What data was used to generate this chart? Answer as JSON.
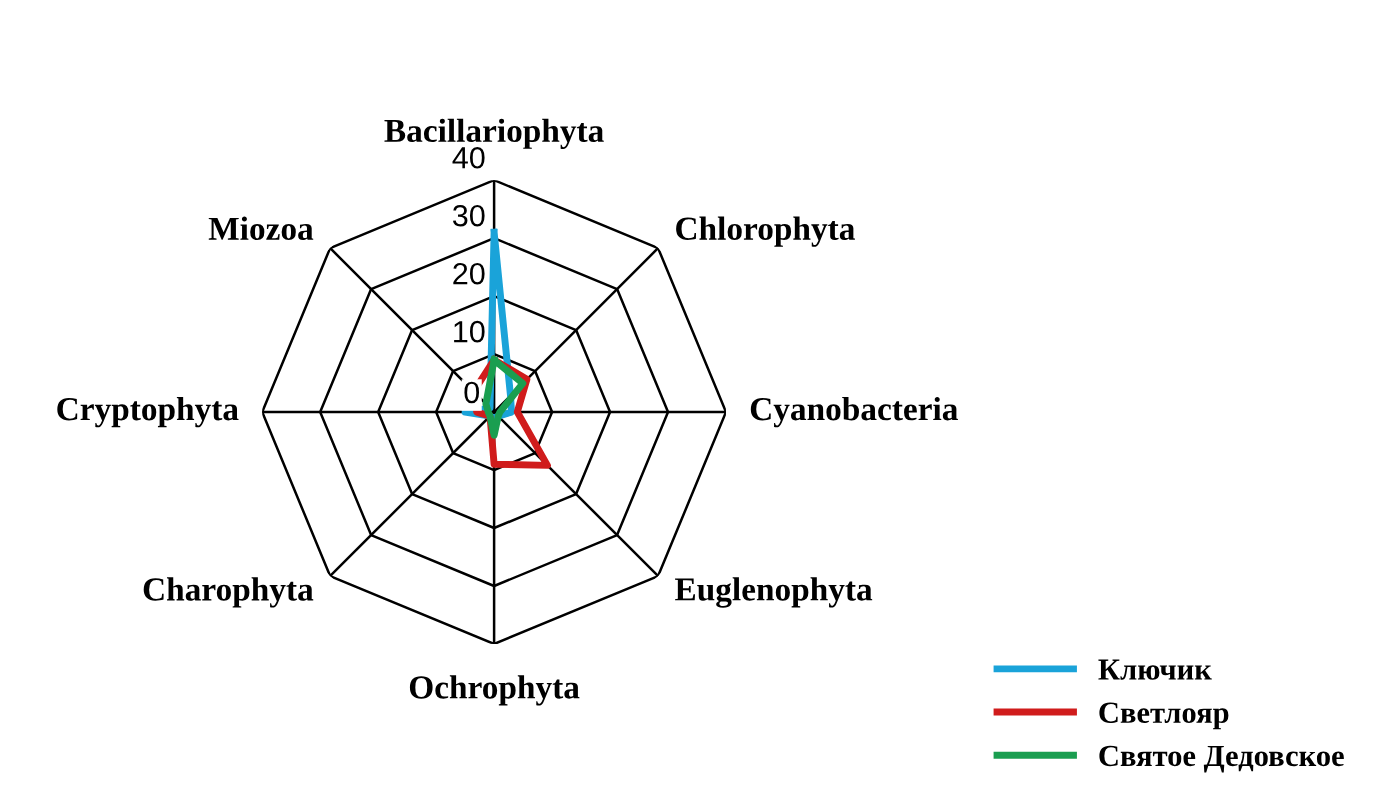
{
  "chart_data": {
    "type": "radar",
    "categories": [
      "Bacillariophyta",
      "Chlorophyta",
      "Cyanobacteria",
      "Euglenophyta",
      "Ochrophyta",
      "Charophyta",
      "Cryptophyta",
      "Miozoa"
    ],
    "series": [
      {
        "name": "Ключик",
        "color": "#1aa3d9",
        "values": [
          31,
          4,
          3,
          1,
          1,
          1,
          5,
          1
        ]
      },
      {
        "name": "Светлояр",
        "color": "#d01c1c",
        "values": [
          9,
          8,
          4,
          13,
          9,
          1,
          3,
          5
        ]
      },
      {
        "name": "Святое Дедовское",
        "color": "#1a9e50",
        "values": [
          9,
          7,
          1,
          1,
          4,
          1,
          1,
          2
        ]
      }
    ],
    "ylim": [
      0,
      40
    ],
    "yticks": [
      0,
      10,
      20,
      30,
      40
    ],
    "grid": true,
    "legend": "bottom right",
    "marker": "none",
    "line_style": "solid"
  }
}
